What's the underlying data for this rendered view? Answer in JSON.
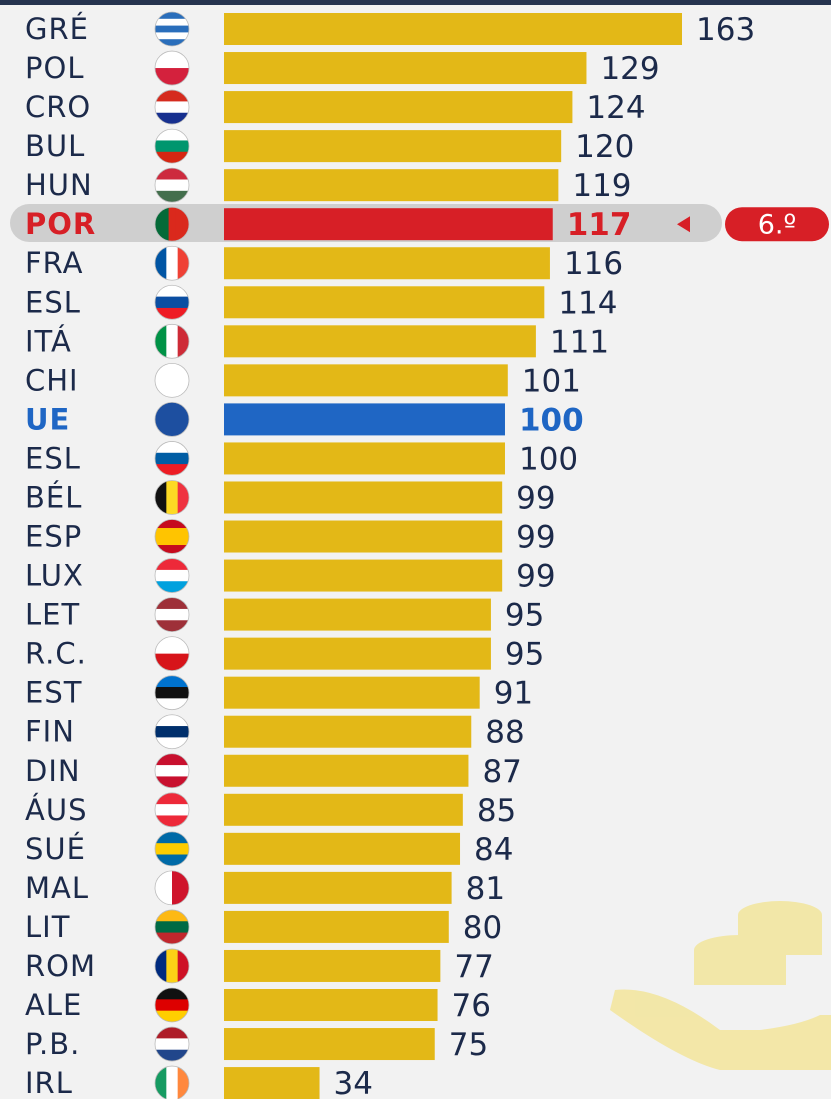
{
  "chart_data": {
    "type": "bar",
    "orientation": "horizontal",
    "categories": [
      "GRÉ",
      "POL",
      "CRO",
      "BUL",
      "HUN",
      "POR",
      "FRA",
      "ESL",
      "ITÁ",
      "CHI",
      "UE",
      "ESL",
      "BÉL",
      "ESP",
      "LUX",
      "LET",
      "R.C.",
      "EST",
      "FIN",
      "DIN",
      "ÁUS",
      "SUÉ",
      "MAL",
      "LIT",
      "ROM",
      "ALE",
      "P.B.",
      "IRL"
    ],
    "values": [
      163,
      129,
      124,
      120,
      119,
      117,
      116,
      114,
      111,
      101,
      100,
      100,
      99,
      99,
      99,
      95,
      95,
      91,
      88,
      87,
      85,
      84,
      81,
      80,
      77,
      76,
      75,
      34
    ],
    "colors": [
      "#e3b817",
      "#e3b817",
      "#e3b817",
      "#e3b817",
      "#e3b817",
      "#d71f26",
      "#e3b817",
      "#e3b817",
      "#e3b817",
      "#e3b817",
      "#1f66c4",
      "#e3b817",
      "#e3b817",
      "#e3b817",
      "#e3b817",
      "#e3b817",
      "#e3b817",
      "#e3b817",
      "#e3b817",
      "#e3b817",
      "#e3b817",
      "#e3b817",
      "#e3b817",
      "#e3b817",
      "#e3b817",
      "#e3b817",
      "#e3b817",
      "#e3b817"
    ],
    "annotations": [
      {
        "category_index": 5,
        "text": "6.º"
      }
    ]
  }
}
